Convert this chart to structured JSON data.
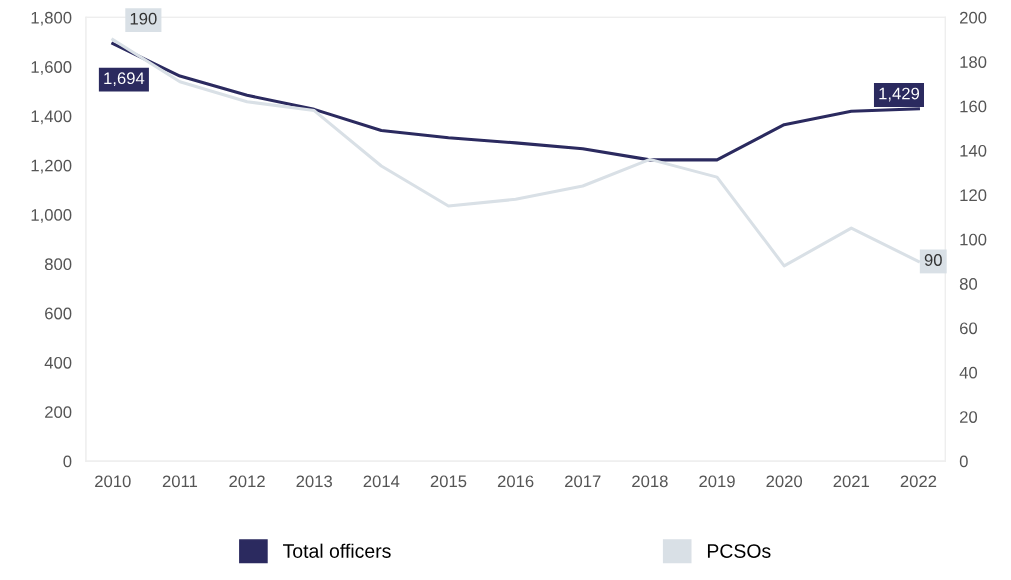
{
  "chart_data": {
    "type": "line",
    "categories": [
      "2010",
      "2011",
      "2012",
      "2013",
      "2014",
      "2015",
      "2016",
      "2017",
      "2018",
      "2019",
      "2020",
      "2021",
      "2022"
    ],
    "series": [
      {
        "name": "Total officers",
        "color": "#2b2a5f",
        "values": [
          1694,
          1562,
          1484,
          1427,
          1341,
          1312,
          1291,
          1267,
          1222,
          1222,
          1365,
          1419,
          1429
        ],
        "value_labels": [
          "1,694",
          null,
          null,
          null,
          null,
          null,
          null,
          null,
          null,
          null,
          null,
          null,
          "1,429"
        ]
      },
      {
        "name": "PCSOs",
        "color": "#d9e0e6",
        "axis": "y2",
        "values": [
          190,
          171,
          162,
          158,
          133,
          115,
          118,
          124,
          136,
          128,
          88,
          105,
          90
        ],
        "value_labels": [
          "190",
          null,
          null,
          null,
          null,
          null,
          null,
          null,
          null,
          null,
          null,
          null,
          "90"
        ]
      }
    ],
    "ylim": [
      0,
      1800
    ],
    "yticks": [
      0,
      {
        "value": 200,
        "label": "200"
      },
      {
        "value": 400,
        "label": "400"
      },
      {
        "value": 600,
        "label": "600"
      },
      {
        "value": 800,
        "label": "800"
      },
      {
        "value": 1000,
        "label": "1,000"
      },
      {
        "value": 1200,
        "label": "1,200"
      },
      {
        "value": 1400,
        "label": "1,400"
      },
      {
        "value": 1600,
        "label": "1,600"
      },
      {
        "value": 1800,
        "label": "1,800"
      }
    ],
    "y2lim": [
      0,
      200
    ],
    "y2ticks": [
      0,
      20,
      40,
      60,
      80,
      100,
      120,
      140,
      160,
      180,
      200
    ],
    "legend": "bottom",
    "grid": false,
    "marker": "none",
    "line_style": "solid"
  }
}
